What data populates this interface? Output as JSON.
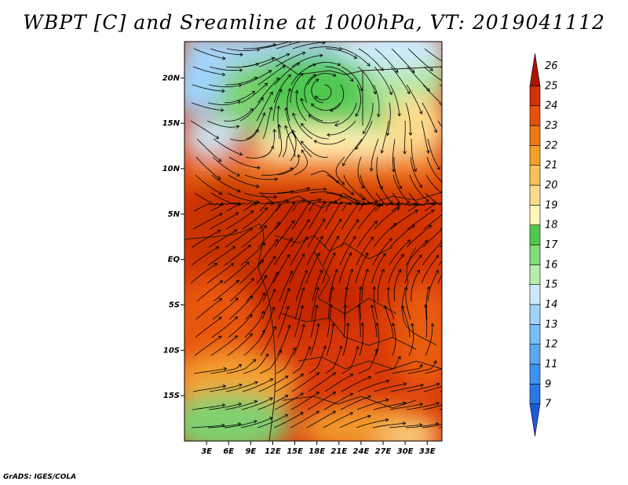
{
  "title": "WBPT [C] and Sreamline at 1000hPa, VT: 2019041112",
  "footer": "GrADS: IGES/COLA",
  "map": {
    "lat_labels": [
      {
        "label": "20N",
        "lat": 20
      },
      {
        "label": "15N",
        "lat": 15
      },
      {
        "label": "10N",
        "lat": 10
      },
      {
        "label": "5N",
        "lat": 5
      },
      {
        "label": "EQ",
        "lat": 0
      },
      {
        "label": "5S",
        "lat": -5
      },
      {
        "label": "10S",
        "lat": -10
      },
      {
        "label": "15S",
        "lat": -15
      }
    ],
    "lon_labels": [
      {
        "label": "3E",
        "lon": 3
      },
      {
        "label": "6E",
        "lon": 6
      },
      {
        "label": "9E",
        "lon": 9
      },
      {
        "label": "12E",
        "lon": 12
      },
      {
        "label": "15E",
        "lon": 15
      },
      {
        "label": "18E",
        "lon": 18
      },
      {
        "label": "21E",
        "lon": 21
      },
      {
        "label": "24E",
        "lon": 24
      },
      {
        "label": "27E",
        "lon": 27
      },
      {
        "label": "30E",
        "lon": 30
      },
      {
        "label": "33E",
        "lon": 33
      }
    ],
    "lon_range": [
      0,
      35
    ],
    "lat_range": [
      -20,
      24
    ]
  },
  "colorbar": {
    "levels": [
      "7",
      "9",
      "11",
      "12",
      "13",
      "14",
      "15",
      "16",
      "17",
      "18",
      "19",
      "20",
      "21",
      "22",
      "23",
      "24",
      "25",
      "26"
    ],
    "colors": [
      "#1e5ad8",
      "#2a78e6",
      "#3c92f0",
      "#5aa8f6",
      "#78bef8",
      "#a0d2fa",
      "#cdeafc",
      "#b4eeaa",
      "#82dc78",
      "#50c850",
      "#fff6b4",
      "#fcdc8c",
      "#fabe5a",
      "#f5a028",
      "#f07814",
      "#e6500a",
      "#d23200",
      "#aa1400"
    ]
  }
}
